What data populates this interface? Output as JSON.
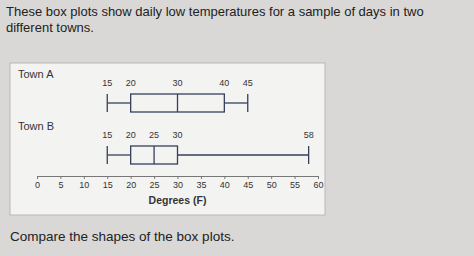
{
  "chart_data": {
    "type": "box",
    "title": "These box plots show daily low temperatures for a sample of days in two different towns.",
    "annotations": [
      "Compare the shapes of the box plots."
    ],
    "orientation": "horizontal",
    "xlabel": "Degrees (F)",
    "xlim": [
      0,
      60
    ],
    "xticks": [
      0,
      5,
      10,
      15,
      20,
      25,
      30,
      35,
      40,
      45,
      50,
      55,
      60
    ],
    "data_labels": true,
    "series": [
      {
        "name": "Town A",
        "color": "#34405a",
        "values": [
          15,
          20,
          30,
          40,
          45
        ]
      },
      {
        "name": "Town B",
        "color": "#34405a",
        "values": [
          15,
          20,
          25,
          30,
          58
        ]
      }
    ]
  }
}
